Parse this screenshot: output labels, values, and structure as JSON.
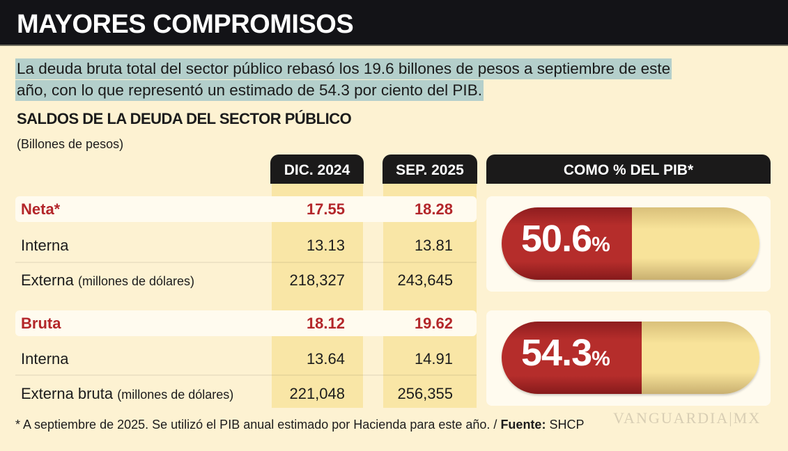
{
  "title": "MAYORES COMPROMISOS",
  "lead": [
    "La deuda bruta total del sector público rebasó los 19.6 billones de pesos a septiembre de este",
    "año, con lo que representó un estimado de 54.3 por ciento del PIB."
  ],
  "chart_data": {
    "type": "table",
    "title": "SALDOS DE LA DEUDA DEL SECTOR PÚBLICO",
    "unit": "(Billones de pesos)",
    "columns": [
      "DIC. 2024",
      "SEP. 2025",
      "COMO % DEL PIB*"
    ],
    "groups": [
      {
        "label": "Neta*",
        "total": [
          "17.55",
          "18.28"
        ],
        "rows": [
          {
            "label": "Interna",
            "note": "",
            "values": [
              "13.13",
              "13.81"
            ]
          },
          {
            "label": "Externa",
            "note": "(millones de dólares)",
            "values": [
              "218,327",
              "243,645"
            ]
          }
        ],
        "pib_pct": 50.6,
        "pib_label": "50.6"
      },
      {
        "label": "Bruta",
        "total": [
          "18.12",
          "19.62"
        ],
        "rows": [
          {
            "label": "Interna",
            "note": "",
            "values": [
              "13.64",
              "14.91"
            ]
          },
          {
            "label": "Externa bruta",
            "note": "(millones de dólares)",
            "values": [
              "221,048",
              "256,355"
            ]
          }
        ],
        "pib_pct": 54.3,
        "pib_label": "54.3"
      }
    ],
    "pct_sign": "%",
    "colors": {
      "accent": "#b3262a",
      "pill": "#f8e39a",
      "column": "#f9e6a6"
    }
  },
  "footer": {
    "note": "* A septiembre de 2025. Se utilizó el PIB anual estimado por Hacienda para este año. / ",
    "source_label": "Fuente:",
    "source": " SHCP"
  },
  "watermark": "VANGUARDIA MX"
}
